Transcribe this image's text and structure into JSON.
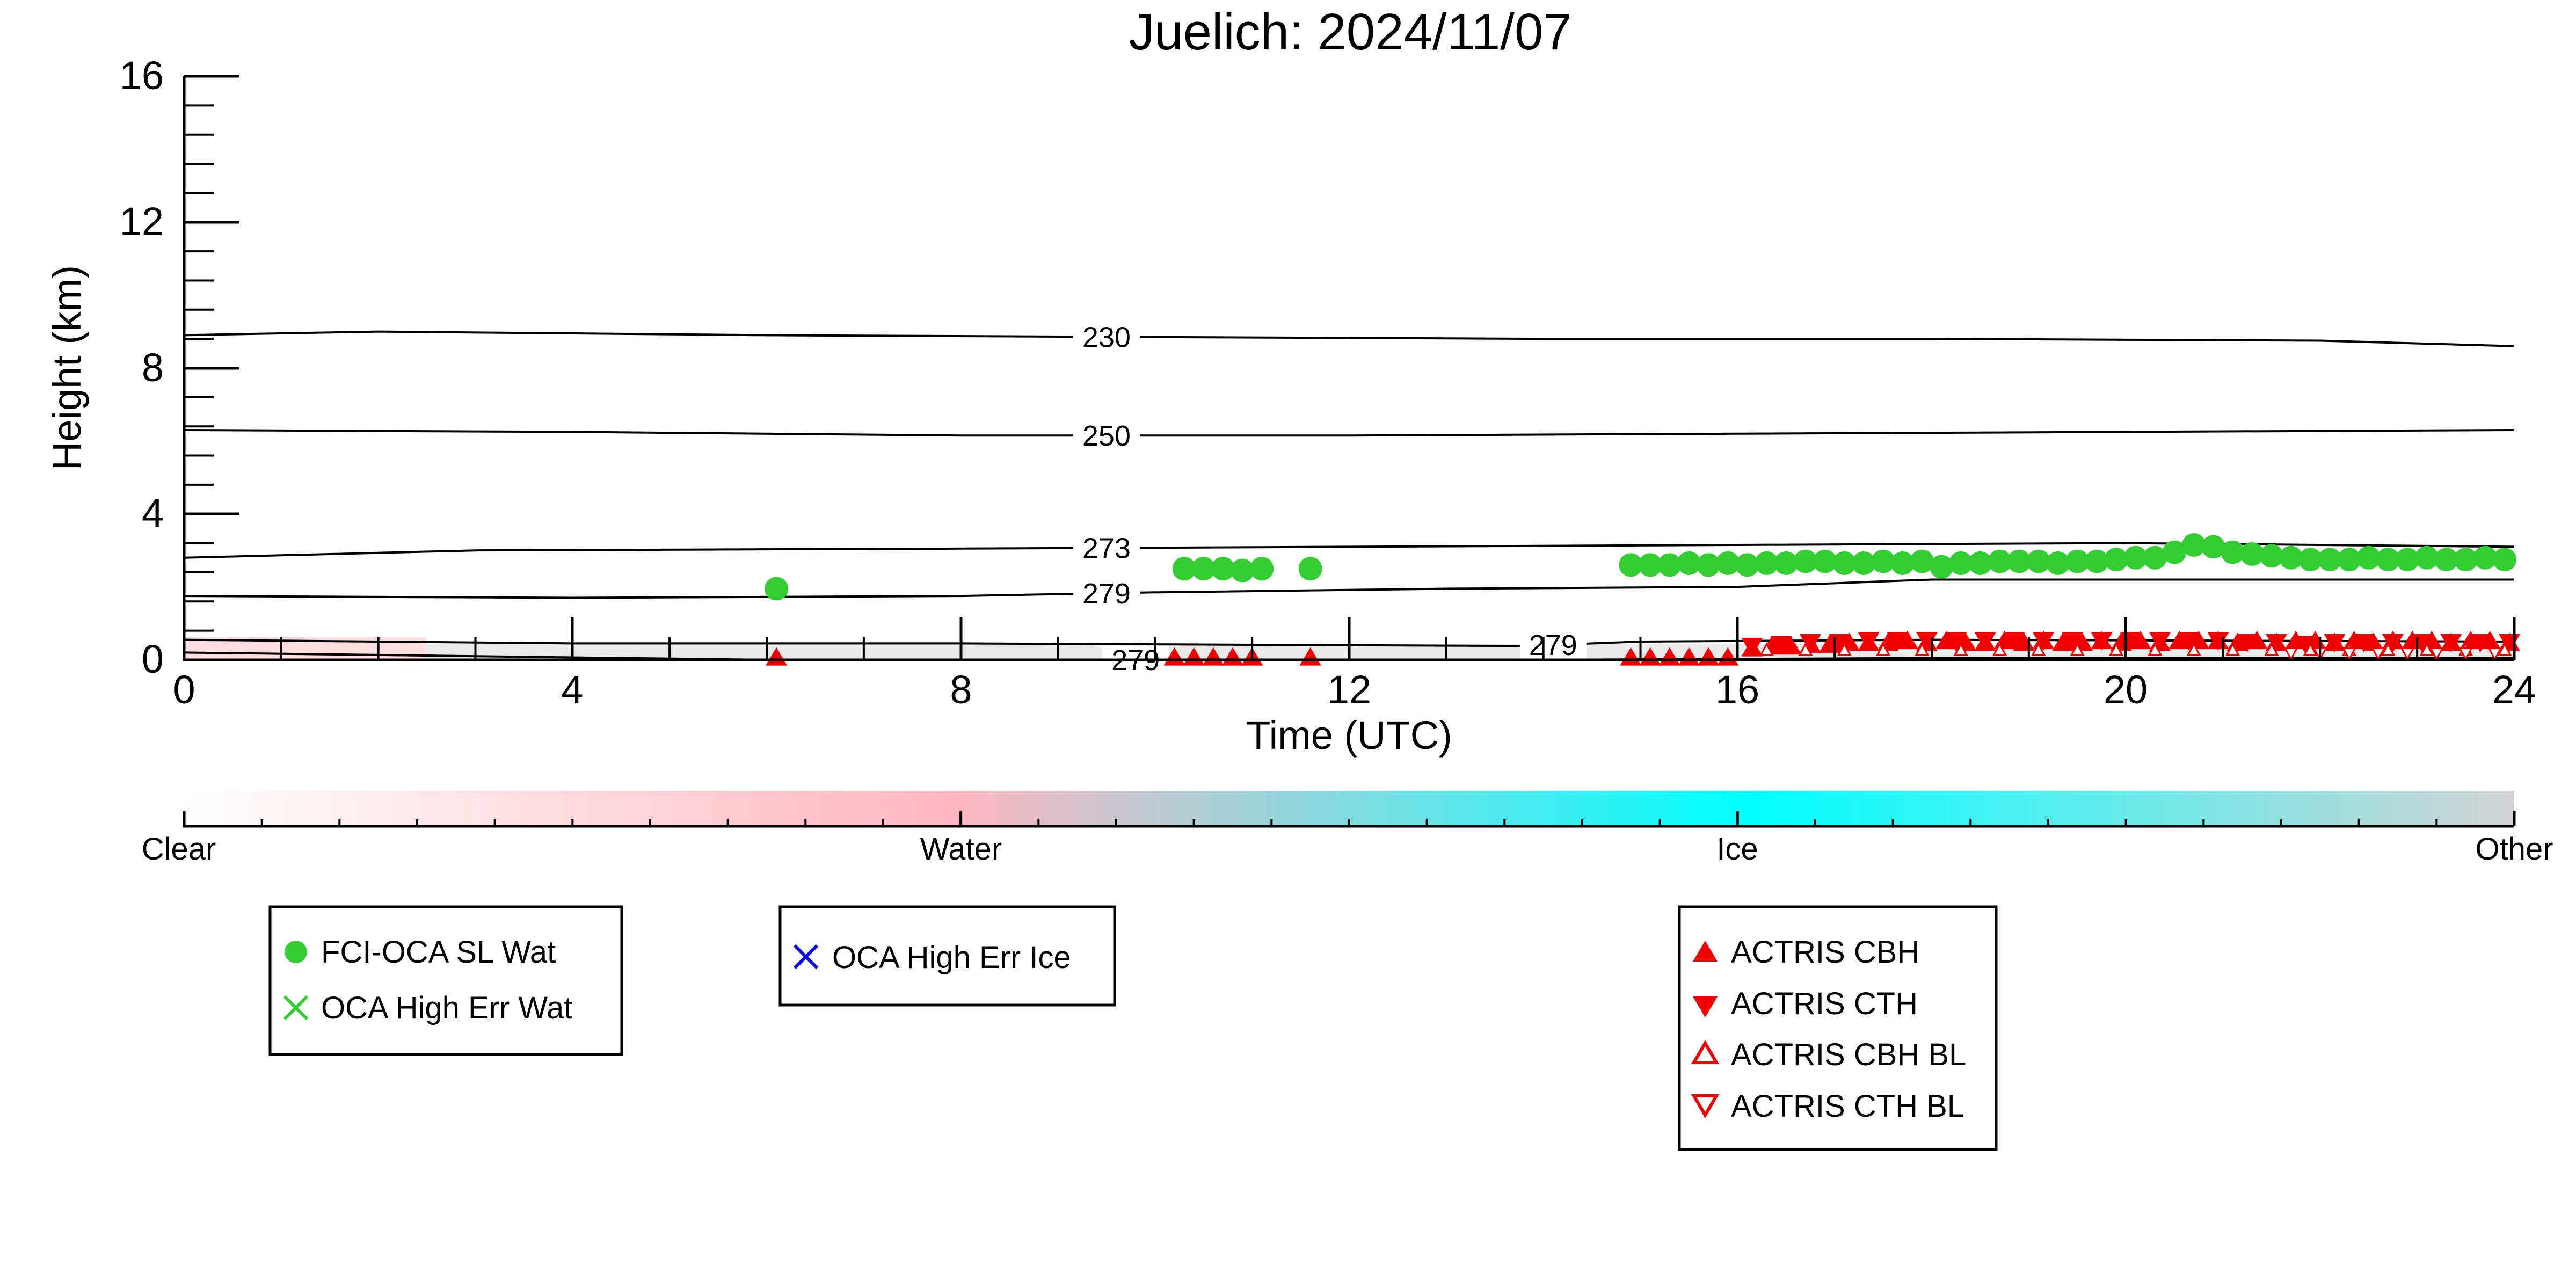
{
  "chart_data": {
    "type": "scatter",
    "title": "Juelich: 2024/11/07",
    "xlabel": "Time (UTC)",
    "ylabel": "Height (km)",
    "xlim": [
      0,
      24
    ],
    "ylim": [
      0,
      16
    ],
    "x_ticks": [
      "0",
      "4",
      "8",
      "12",
      "16",
      "20",
      "24"
    ],
    "y_ticks": [
      "0",
      "4",
      "8",
      "12",
      "16"
    ],
    "temperature_contours": [
      {
        "label": "230",
        "label_x": 9.5,
        "points": [
          [
            0,
            8.9
          ],
          [
            2,
            9.0
          ],
          [
            6,
            8.9
          ],
          [
            10,
            8.85
          ],
          [
            14,
            8.8
          ],
          [
            18,
            8.8
          ],
          [
            22,
            8.75
          ],
          [
            24,
            8.6
          ]
        ]
      },
      {
        "label": "250",
        "label_x": 9.5,
        "points": [
          [
            0,
            6.3
          ],
          [
            4,
            6.25
          ],
          [
            8,
            6.15
          ],
          [
            12,
            6.15
          ],
          [
            16,
            6.2
          ],
          [
            20,
            6.25
          ],
          [
            24,
            6.3
          ]
        ]
      },
      {
        "label": "273",
        "label_x": 9.5,
        "points": [
          [
            0,
            2.8
          ],
          [
            3,
            3.0
          ],
          [
            8,
            3.05
          ],
          [
            12,
            3.1
          ],
          [
            16,
            3.15
          ],
          [
            20,
            3.2
          ],
          [
            24,
            3.1
          ]
        ]
      },
      {
        "label": "279",
        "label_x": 9.5,
        "points": [
          [
            0,
            1.75
          ],
          [
            4,
            1.7
          ],
          [
            8,
            1.75
          ],
          [
            10,
            1.85
          ],
          [
            13,
            1.95
          ],
          [
            16,
            2.0
          ],
          [
            18,
            2.2
          ],
          [
            20,
            2.2
          ],
          [
            24,
            2.2
          ]
        ]
      },
      {
        "label": "279",
        "label_x": 14.1,
        "points": [
          [
            0,
            0.55
          ],
          [
            4,
            0.45
          ],
          [
            8,
            0.45
          ],
          [
            12,
            0.4
          ],
          [
            13.8,
            0.38
          ],
          [
            15,
            0.5
          ],
          [
            18,
            0.55
          ],
          [
            24,
            0.5
          ]
        ]
      },
      {
        "label": "279",
        "label_x": 9.8,
        "points": [
          [
            0,
            0.2
          ],
          [
            3,
            0.1
          ],
          [
            6,
            0.0
          ],
          [
            10,
            0.0
          ],
          [
            14,
            0.0
          ],
          [
            18,
            0.05
          ],
          [
            24,
            0.05
          ]
        ]
      }
    ],
    "series": [
      {
        "name": "FCI-OCA SL Wat",
        "marker": "circle",
        "color": "#33cc33",
        "x": [
          6.1,
          10.3,
          10.5,
          10.7,
          10.9,
          11.1,
          11.6,
          14.9,
          15.1,
          15.3,
          15.5,
          15.7,
          15.9,
          16.1,
          16.3,
          16.5,
          16.7,
          16.9,
          17.1,
          17.3,
          17.5,
          17.7,
          17.9,
          18.1,
          18.3,
          18.5,
          18.7,
          18.9,
          19.1,
          19.3,
          19.5,
          19.7,
          19.9,
          20.1,
          20.3,
          20.5,
          20.7,
          20.9,
          21.1,
          21.3,
          21.5,
          21.7,
          21.9,
          22.1,
          22.3,
          22.5,
          22.7,
          22.9,
          23.1,
          23.3,
          23.5,
          23.7,
          23.9
        ],
        "y": [
          1.95,
          2.5,
          2.5,
          2.5,
          2.45,
          2.5,
          2.5,
          2.6,
          2.6,
          2.6,
          2.65,
          2.6,
          2.65,
          2.6,
          2.65,
          2.65,
          2.7,
          2.7,
          2.65,
          2.65,
          2.7,
          2.65,
          2.7,
          2.55,
          2.65,
          2.65,
          2.7,
          2.7,
          2.7,
          2.65,
          2.7,
          2.7,
          2.75,
          2.8,
          2.8,
          2.95,
          3.15,
          3.1,
          2.95,
          2.9,
          2.85,
          2.8,
          2.75,
          2.75,
          2.75,
          2.8,
          2.75,
          2.75,
          2.8,
          2.75,
          2.75,
          2.8,
          2.75
        ]
      },
      {
        "name": "OCA High Err Wat",
        "marker": "x",
        "color": "#33cc33",
        "x": [],
        "y": []
      },
      {
        "name": "OCA High Err Ice",
        "marker": "x",
        "color": "#0000ee",
        "x": [],
        "y": []
      },
      {
        "name": "ACTRIS CBH",
        "marker": "triangle-up",
        "color": "#ee0000",
        "x": [
          6.1,
          10.2,
          10.4,
          10.6,
          10.8,
          11.0,
          11.6,
          14.9,
          15.1,
          15.3,
          15.5,
          15.7,
          15.9,
          16.15,
          16.35,
          16.55,
          16.75,
          16.95,
          17.15,
          17.35,
          17.55,
          17.75,
          17.95,
          18.15,
          18.35,
          18.55,
          18.75,
          18.95,
          19.15,
          19.35,
          19.55,
          19.75,
          19.95,
          20.15,
          20.35,
          20.55,
          20.75,
          20.95,
          21.15,
          21.35,
          21.55,
          21.75,
          21.95,
          22.15,
          22.35,
          22.55,
          22.75,
          22.95,
          23.15,
          23.35,
          23.55,
          23.75,
          23.95
        ],
        "y": [
          0.05,
          0.05,
          0.05,
          0.05,
          0.05,
          0.05,
          0.05,
          0.05,
          0.05,
          0.05,
          0.05,
          0.05,
          0.05,
          0.3,
          0.35,
          0.35,
          0.4,
          0.4,
          0.45,
          0.45,
          0.45,
          0.5,
          0.45,
          0.5,
          0.45,
          0.45,
          0.5,
          0.45,
          0.5,
          0.45,
          0.45,
          0.5,
          0.45,
          0.5,
          0.45,
          0.5,
          0.5,
          0.5,
          0.45,
          0.5,
          0.45,
          0.5,
          0.5,
          0.45,
          0.5,
          0.45,
          0.5,
          0.5,
          0.5,
          0.45,
          0.5,
          0.5,
          0.45
        ]
      },
      {
        "name": "ACTRIS CTH",
        "marker": "triangle-down",
        "color": "#ee0000",
        "x": [
          16.15,
          16.45,
          16.75,
          17.05,
          17.35,
          17.65,
          17.95,
          18.25,
          18.55,
          18.85,
          19.15,
          19.45,
          19.75,
          20.05,
          20.35,
          20.65,
          20.95,
          21.25,
          21.55,
          21.85,
          22.15,
          22.45,
          22.75,
          23.05,
          23.35,
          23.65,
          23.95
        ],
        "y": [
          0.4,
          0.45,
          0.5,
          0.5,
          0.55,
          0.55,
          0.55,
          0.55,
          0.55,
          0.55,
          0.55,
          0.55,
          0.55,
          0.55,
          0.55,
          0.55,
          0.55,
          0.5,
          0.5,
          0.45,
          0.5,
          0.5,
          0.5,
          0.5,
          0.5,
          0.5,
          0.5
        ]
      },
      {
        "name": "ACTRIS CBH BL",
        "marker": "triangle-up-open",
        "color": "#ee0000",
        "x": [
          16.3,
          16.7,
          17.1,
          17.5,
          17.9,
          18.3,
          18.7,
          19.1,
          19.5,
          19.9,
          20.3,
          20.7,
          21.1,
          21.5,
          21.9,
          22.3,
          22.7,
          23.1,
          23.5,
          23.9
        ],
        "y": [
          0.25,
          0.25,
          0.25,
          0.25,
          0.25,
          0.25,
          0.25,
          0.25,
          0.25,
          0.25,
          0.25,
          0.25,
          0.25,
          0.25,
          0.25,
          0.25,
          0.25,
          0.25,
          0.25,
          0.25
        ]
      },
      {
        "name": "ACTRIS CTH BL",
        "marker": "triangle-down-open",
        "color": "#ee0000",
        "x": [
          21.7,
          22.0,
          22.3,
          22.6,
          22.9,
          23.2,
          23.5,
          23.8
        ],
        "y": [
          0.2,
          0.2,
          0.2,
          0.2,
          0.2,
          0.2,
          0.2,
          0.2
        ]
      }
    ],
    "colorbar": {
      "labels": [
        "Clear",
        "Water",
        "Ice",
        "Other"
      ],
      "colors": [
        "#ffffff",
        "#ffb6c1",
        "#00ffff",
        "#d3d3d3"
      ]
    },
    "legends": [
      {
        "entries": [
          "FCI-OCA SL Wat",
          "OCA High Err Wat"
        ]
      },
      {
        "entries": [
          "OCA High Err Ice"
        ]
      },
      {
        "entries": [
          "ACTRIS CBH",
          "ACTRIS CTH",
          "ACTRIS CBH BL",
          "ACTRIS CTH BL"
        ]
      }
    ]
  }
}
